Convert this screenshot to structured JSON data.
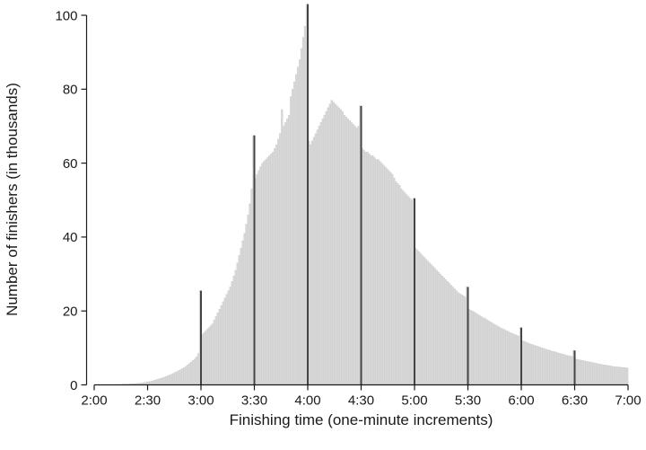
{
  "figure": {
    "background": "#ffffff"
  },
  "chart_data": {
    "type": "bar",
    "title": "",
    "xlabel": "Finishing time (one-minute increments)",
    "ylabel": "Number of finishers (in thousands)",
    "x_start_minutes": 120,
    "x_end_minutes": 420,
    "x_tick_labels": [
      "2:00",
      "2:30",
      "3:00",
      "3:30",
      "4:00",
      "4:30",
      "5:00",
      "5:30",
      "6:00",
      "6:30",
      "7:00"
    ],
    "x_tick_minutes": [
      120,
      150,
      180,
      210,
      240,
      270,
      300,
      330,
      360,
      390,
      420
    ],
    "y_ticks": [
      0,
      20,
      40,
      60,
      80,
      100
    ],
    "ylim": [
      0,
      104
    ],
    "grid": false,
    "legend": false,
    "bar_color": "#d8d8d8",
    "bar_edge_color": "#c6c6c6",
    "spike_line_color": "#444444",
    "axis_color": "#1a1a1a",
    "values_thousands": [
      0.05,
      0.05,
      0.05,
      0.05,
      0.05,
      0.06,
      0.06,
      0.07,
      0.07,
      0.08,
      0.08,
      0.09,
      0.1,
      0.1,
      0.12,
      0.13,
      0.15,
      0.17,
      0.2,
      0.22,
      0.25,
      0.28,
      0.32,
      0.36,
      0.4,
      0.45,
      0.5,
      0.58,
      0.66,
      0.75,
      0.85,
      0.95,
      1.05,
      1.2,
      1.35,
      1.5,
      1.65,
      1.8,
      1.95,
      2.1,
      2.3,
      2.5,
      2.7,
      2.9,
      3.1,
      3.4,
      3.6,
      3.9,
      4.1,
      4.4,
      4.7,
      5,
      5.4,
      5.8,
      6.2,
      6.6,
      7,
      7.6,
      8.5,
      25.5,
      13.5,
      14,
      14.5,
      15,
      15.5,
      16,
      16.5,
      17.5,
      18.5,
      19.5,
      20.5,
      21.5,
      22.5,
      23.5,
      24.5,
      25.5,
      26.5,
      28,
      29.5,
      31,
      33,
      35,
      37,
      39,
      41,
      43.5,
      46,
      49,
      53,
      67.5,
      56,
      57,
      58,
      59,
      60,
      60.5,
      61,
      61.5,
      62,
      62.5,
      63,
      64,
      65,
      66.5,
      68,
      74.5,
      70,
      71,
      72,
      73,
      78,
      80,
      82,
      84,
      86,
      88,
      91,
      94,
      97,
      103,
      66,
      65,
      66,
      67,
      68,
      69,
      70,
      71,
      72,
      73,
      74,
      75,
      76,
      77,
      76.5,
      76,
      75.5,
      75,
      74.5,
      74,
      73,
      72.5,
      72,
      71.5,
      71,
      70.5,
      70,
      69.5,
      70,
      75.5,
      64,
      63.5,
      63,
      63,
      62.5,
      62,
      62,
      61.5,
      61,
      61,
      60.5,
      60,
      59.5,
      59,
      58.5,
      58,
      57.5,
      57,
      56,
      55,
      54.5,
      54,
      53,
      52.5,
      52,
      51.5,
      51,
      50.5,
      50,
      50.5,
      37,
      36.5,
      36,
      35.5,
      35,
      34.5,
      34,
      33.5,
      33,
      32.5,
      32,
      31.5,
      31,
      30.5,
      30,
      29.5,
      29,
      28.5,
      28,
      27.5,
      27,
      26.5,
      26,
      25.5,
      25,
      24.7,
      24.4,
      24.1,
      23.8,
      26.5,
      20.5,
      20.2,
      20,
      19.7,
      19.4,
      19.1,
      18.8,
      18.5,
      18.2,
      18,
      17.7,
      17.4,
      17.1,
      16.8,
      16.5,
      16.2,
      16,
      15.7,
      15.4,
      15.2,
      15,
      14.7,
      14.5,
      14.2,
      14,
      13.8,
      13.6,
      13.4,
      13.2,
      15.5,
      12,
      11.8,
      11.6,
      11.4,
      11.2,
      11,
      10.9,
      10.7,
      10.5,
      10.4,
      10.2,
      10,
      9.9,
      9.7,
      9.6,
      9.4,
      9.3,
      9.1,
      9,
      8.9,
      8.7,
      8.6,
      8.4,
      8.3,
      8.2,
      8,
      7.9,
      7.8,
      7.7,
      9.3,
      7,
      6.9,
      6.8,
      6.7,
      6.6,
      6.5,
      6.4,
      6.3,
      6.2,
      6.1,
      6,
      5.9,
      5.8,
      5.7,
      5.6,
      5.5,
      5.4,
      5.35,
      5.3,
      5.2,
      5.1,
      5,
      4.95,
      4.9,
      4.85,
      4.8,
      4.75,
      4.7,
      4.65,
      4.6,
      4.5
    ],
    "round_time_spikes": [
      {
        "time": "3:00",
        "minutes": 180,
        "height_thousands": 25.5
      },
      {
        "time": "3:30",
        "minutes": 210,
        "height_thousands": 67.5
      },
      {
        "time": "4:00",
        "minutes": 240,
        "height_thousands": 103
      },
      {
        "time": "4:30",
        "minutes": 270,
        "height_thousands": 75.5
      },
      {
        "time": "5:00",
        "minutes": 300,
        "height_thousands": 50.5
      },
      {
        "time": "5:30",
        "minutes": 330,
        "height_thousands": 26.5
      },
      {
        "time": "6:00",
        "minutes": 360,
        "height_thousands": 15.5
      },
      {
        "time": "6:30",
        "minutes": 390,
        "height_thousands": 9.3
      }
    ]
  }
}
